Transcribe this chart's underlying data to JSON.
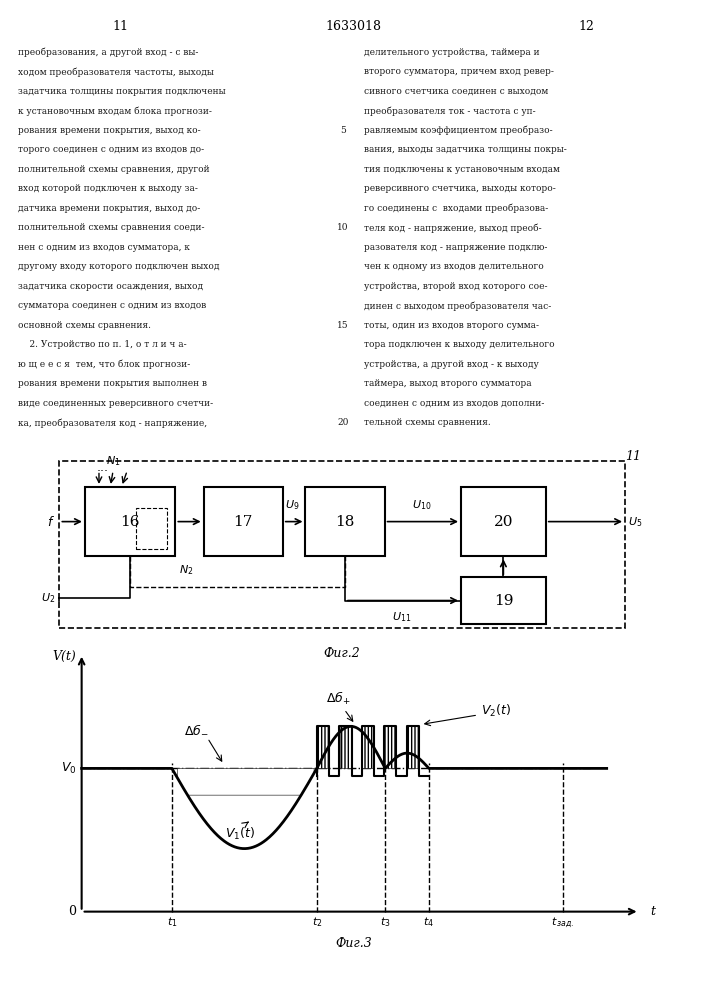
{
  "page_num_left": "11",
  "page_num_center": "1633018",
  "page_num_right": "12",
  "left_col_text": [
    "преобразования, а другой вход - с вы-",
    "ходом преобразователя частоты, выходы",
    "задатчика толщины покрытия подключены",
    "к установочным входам блока прогнози-",
    "рования времени покрытия, выход ко-",
    "торого соединен с одним из входов до-",
    "полнительной схемы сравнения, другой",
    "вход которой подключен к выходу за-",
    "датчика времени покрытия, выход до-",
    "полнительной схемы сравнения соеди-",
    "нен с одним из входов сумматора, к",
    "другому входу которого подключен выход",
    "задатчика скорости осаждения, выход",
    "сумматора соединен с одним из входов",
    "основной схемы сравнения.",
    "    2. Устройство по п. 1, о т л и ч а-",
    "ю щ е е с я  тем, что блок прогнози-",
    "рования времени покрытия выполнен в",
    "виде соединенных реверсивного счетчи-",
    "ка, преобразователя код - напряжение,"
  ],
  "right_col_text": [
    "делительного устройства, таймера и",
    "второго сумматора, причем вход ревер-",
    "сивного счетчика соединен с выходом",
    "преобразователя ток - частота с уп-",
    "равляемым коэффициентом преобразо-",
    "вания, выходы задатчика толщины покры-",
    "тия подключены к установочным входам",
    "реверсивного счетчика, выходы которо-",
    "го соединены с  входами преобразова-",
    "теля код - напряжение, выход преоб-",
    "разователя код - напряжение подклю-",
    "чен к одному из входов делительного",
    "устройства, второй вход которого сое-",
    "динен с выходом преобразователя час-",
    "тоты, один из входов второго сумма-",
    "тора подключен к выходу делительного",
    "устройства, а другой вход - к выходу",
    "таймера, выход второго сумматора",
    "соединен с одним из входов дополни-",
    "тельной схемы сравнения."
  ],
  "line_numbers": [
    [
      5,
      4
    ],
    [
      10,
      9
    ],
    [
      15,
      14
    ],
    [
      20,
      19
    ]
  ],
  "fig2_caption": "Фиг.2",
  "fig3_caption": "Фиг.3",
  "background": "#ffffff"
}
